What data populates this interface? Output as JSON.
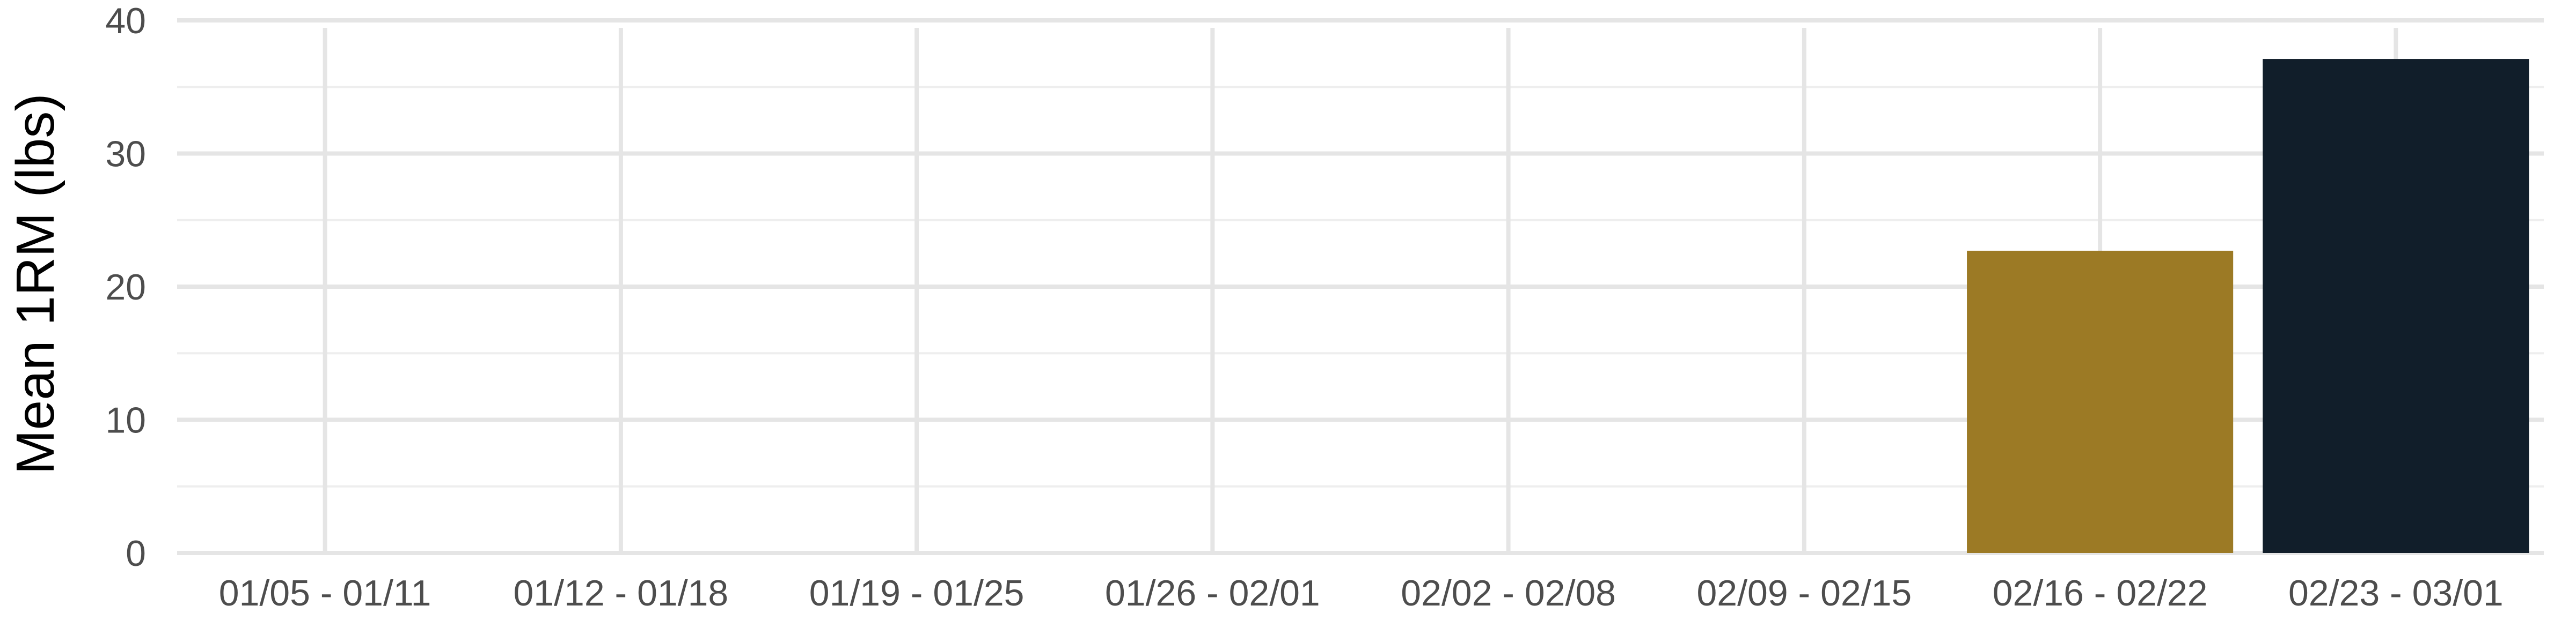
{
  "chart_data": {
    "type": "bar",
    "title": "",
    "xlabel": "",
    "ylabel": "Mean 1RM (lbs)",
    "categories": [
      "01/05 - 01/11",
      "01/12 - 01/18",
      "01/19 - 01/25",
      "01/26 - 02/01",
      "02/02 - 02/08",
      "02/09 - 02/15",
      "02/16 - 02/22",
      "02/23 - 03/01"
    ],
    "values": [
      null,
      null,
      null,
      null,
      null,
      null,
      22.7,
      37.1
    ],
    "bar_colors": [
      null,
      null,
      null,
      null,
      null,
      null,
      "#9c7a25",
      "#111e2a"
    ],
    "ylim": [
      0,
      40
    ],
    "yticks": [
      "0",
      "10",
      "20",
      "30",
      "40"
    ],
    "grid": true,
    "legend": "none"
  }
}
